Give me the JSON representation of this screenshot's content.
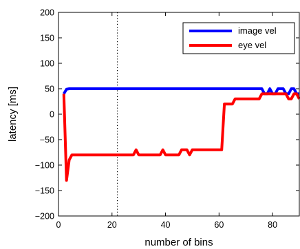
{
  "chart_data": {
    "type": "line",
    "title": "",
    "xlabel": "number of bins",
    "ylabel": "latency [ms]",
    "xlim": [
      0,
      90
    ],
    "ylim": [
      -200,
      200
    ],
    "xticks": [
      0,
      20,
      40,
      60,
      80
    ],
    "yticks": [
      -200,
      -150,
      -100,
      -50,
      0,
      50,
      100,
      150,
      200
    ],
    "grid": false,
    "legend_position": "top-right",
    "vertical_marker": {
      "x": 22,
      "style": "dotted"
    },
    "series": [
      {
        "name": "image vel",
        "color": "#0000ff",
        "x": [
          2,
          3,
          4,
          10,
          20,
          30,
          40,
          50,
          60,
          70,
          75,
          76,
          77,
          78,
          79,
          80,
          81,
          82,
          83,
          84,
          85,
          86,
          87,
          88,
          89,
          90
        ],
        "y": [
          40,
          49,
          50,
          50,
          50,
          50,
          50,
          50,
          50,
          50,
          50,
          50,
          40,
          40,
          50,
          40,
          40,
          50,
          50,
          50,
          40,
          40,
          50,
          50,
          40,
          40
        ]
      },
      {
        "name": "eye vel",
        "color": "#ff0000",
        "x": [
          2,
          3,
          4,
          5,
          10,
          20,
          28,
          29,
          30,
          35,
          38,
          39,
          40,
          45,
          46,
          47,
          48,
          49,
          50,
          55,
          61,
          62,
          65,
          66,
          67,
          70,
          75,
          76,
          80,
          85,
          86,
          87,
          88,
          89,
          90
        ],
        "y": [
          40,
          -130,
          -90,
          -80,
          -80,
          -80,
          -80,
          -70,
          -80,
          -80,
          -80,
          -70,
          -80,
          -80,
          -70,
          -70,
          -70,
          -80,
          -70,
          -70,
          -70,
          20,
          20,
          30,
          30,
          30,
          30,
          40,
          40,
          40,
          30,
          30,
          40,
          40,
          30
        ]
      }
    ]
  }
}
